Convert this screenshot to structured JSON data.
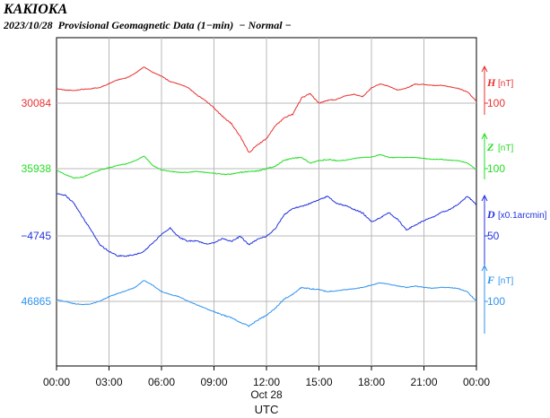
{
  "header": {
    "station": "KAKIOKA",
    "subtitle": "2023/10/28  Provisional Geomagnetic Data (1−min)  − Normal −"
  },
  "chart_data": {
    "type": "line",
    "x_ticks": [
      "00:00",
      "03:00",
      "06:00",
      "09:00",
      "12:00",
      "15:00",
      "18:00",
      "21:00",
      "00:00"
    ],
    "x_date": "Oct 28",
    "xlabel": "UTC",
    "x": [
      0,
      0.5,
      1,
      1.5,
      2,
      2.5,
      3,
      3.5,
      4,
      4.5,
      5,
      5.5,
      6,
      6.5,
      7,
      7.5,
      8,
      8.5,
      9,
      9.5,
      10,
      10.5,
      11,
      11.5,
      12,
      12.5,
      13,
      13.5,
      14,
      14.5,
      15,
      15.5,
      16,
      16.5,
      17,
      17.5,
      18,
      18.5,
      19,
      19.5,
      20,
      20.5,
      21,
      21.5,
      22,
      22.5,
      23,
      23.5,
      24
    ],
    "series": [
      {
        "name": "H",
        "unit": "[nT]",
        "scale": "100",
        "base_label": "30084",
        "color": "#e8312f",
        "values": [
          30115,
          30112,
          30111,
          30114,
          30115,
          30118,
          30126,
          30134,
          30138,
          30148,
          30162,
          30150,
          30142,
          30130,
          30125,
          30118,
          30102,
          30090,
          30074,
          30055,
          30040,
          30012,
          29978,
          29995,
          30008,
          30035,
          30052,
          30060,
          30095,
          30104,
          30084,
          30090,
          30092,
          30100,
          30103,
          30098,
          30117,
          30125,
          30120,
          30112,
          30116,
          30125,
          30124,
          30122,
          30122,
          30119,
          30115,
          30108,
          30088
        ]
      },
      {
        "name": "Z",
        "unit": "[nT]",
        "scale": "100",
        "base_label": "35938",
        "color": "#22dd22",
        "values": [
          35935,
          35925,
          35918,
          35920,
          35928,
          35935,
          35940,
          35945,
          35948,
          35955,
          35965,
          35945,
          35935,
          35932,
          35930,
          35930,
          35932,
          35930,
          35928,
          35926,
          35926,
          35930,
          35932,
          35933,
          35938,
          35943,
          35956,
          35960,
          35962,
          35950,
          35955,
          35958,
          35955,
          35956,
          35960,
          35962,
          35963,
          35968,
          35962,
          35962,
          35962,
          35962,
          35960,
          35958,
          35958,
          35956,
          35955,
          35950,
          35935
        ]
      },
      {
        "name": "D",
        "unit": "[x0.1arcmin]",
        "scale": "50",
        "base_label": "−4745",
        "color": "#2233dd",
        "values": [
          -4654,
          -4658,
          -4675,
          -4706,
          -4734,
          -4765,
          -4778,
          -4788,
          -4788,
          -4785,
          -4778,
          -4760,
          -4742,
          -4728,
          -4748,
          -4756,
          -4755,
          -4762,
          -4760,
          -4750,
          -4757,
          -4746,
          -4764,
          -4752,
          -4746,
          -4730,
          -4700,
          -4686,
          -4682,
          -4675,
          -4668,
          -4660,
          -4675,
          -4680,
          -4688,
          -4696,
          -4715,
          -4706,
          -4695,
          -4710,
          -4732,
          -4722,
          -4712,
          -4705,
          -4695,
          -4688,
          -4676,
          -4660,
          -4678
        ]
      },
      {
        "name": "F",
        "unit": "[nT]",
        "scale": "100",
        "base_label": "46865",
        "color": "#2f93ee",
        "values": [
          46868,
          46865,
          46860,
          46858,
          46860,
          46866,
          46875,
          46882,
          46888,
          46895,
          46910,
          46900,
          46886,
          46880,
          46875,
          46866,
          46858,
          46850,
          46843,
          46836,
          46830,
          46820,
          46812,
          46825,
          46835,
          46850,
          46870,
          46880,
          46895,
          46892,
          46890,
          46886,
          46888,
          46890,
          46892,
          46895,
          46900,
          46905,
          46902,
          46898,
          46895,
          46898,
          46895,
          46893,
          46895,
          46895,
          46892,
          46885,
          46865
        ]
      }
    ]
  }
}
